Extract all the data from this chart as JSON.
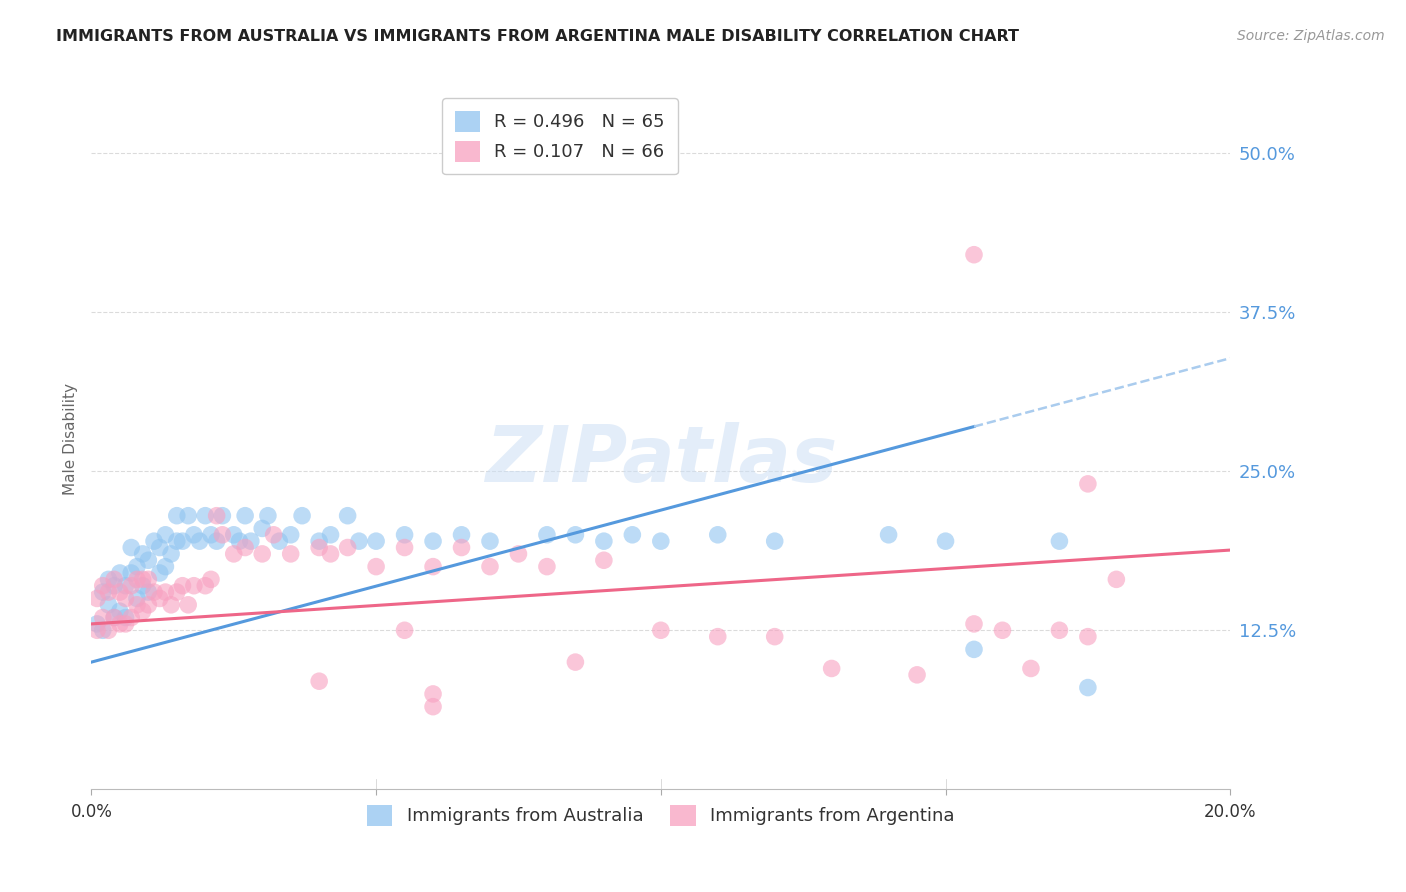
{
  "title": "IMMIGRANTS FROM AUSTRALIA VS IMMIGRANTS FROM ARGENTINA MALE DISABILITY CORRELATION CHART",
  "source": "Source: ZipAtlas.com",
  "ylabel": "Male Disability",
  "ytick_values": [
    0.125,
    0.25,
    0.375,
    0.5
  ],
  "xlim": [
    0.0,
    0.2
  ],
  "ylim": [
    0.0,
    0.55
  ],
  "watermark_text": "ZIPatlas",
  "australia_color": "#90c4f0",
  "argentina_color": "#f8a0c0",
  "australia_line_color": "#5599dd",
  "argentina_line_color": "#ee6688",
  "dashed_line_color": "#aaccee",
  "background_color": "#ffffff",
  "grid_color": "#d8d8d8",
  "title_color": "#222222",
  "tick_label_color": "#5599dd",
  "source_color": "#999999",
  "australia_label": "Immigrants from Australia",
  "argentina_label": "Immigrants from Argentina",
  "aus_R": "0.496",
  "aus_N": "65",
  "arg_R": "0.107",
  "arg_N": "66",
  "aus_x": [
    0.001,
    0.002,
    0.002,
    0.003,
    0.003,
    0.004,
    0.004,
    0.005,
    0.005,
    0.006,
    0.006,
    0.007,
    0.007,
    0.008,
    0.008,
    0.009,
    0.009,
    0.01,
    0.01,
    0.011,
    0.012,
    0.012,
    0.013,
    0.013,
    0.014,
    0.015,
    0.015,
    0.016,
    0.017,
    0.018,
    0.019,
    0.02,
    0.021,
    0.022,
    0.023,
    0.025,
    0.026,
    0.027,
    0.028,
    0.03,
    0.031,
    0.033,
    0.035,
    0.037,
    0.04,
    0.042,
    0.045,
    0.047,
    0.05,
    0.055,
    0.06,
    0.065,
    0.07,
    0.08,
    0.085,
    0.09,
    0.095,
    0.1,
    0.11,
    0.12,
    0.14,
    0.15,
    0.155,
    0.17,
    0.175
  ],
  "aus_y": [
    0.13,
    0.125,
    0.155,
    0.145,
    0.165,
    0.135,
    0.16,
    0.14,
    0.17,
    0.135,
    0.16,
    0.17,
    0.19,
    0.15,
    0.175,
    0.16,
    0.185,
    0.155,
    0.18,
    0.195,
    0.17,
    0.19,
    0.175,
    0.2,
    0.185,
    0.195,
    0.215,
    0.195,
    0.215,
    0.2,
    0.195,
    0.215,
    0.2,
    0.195,
    0.215,
    0.2,
    0.195,
    0.215,
    0.195,
    0.205,
    0.215,
    0.195,
    0.2,
    0.215,
    0.195,
    0.2,
    0.215,
    0.195,
    0.195,
    0.2,
    0.195,
    0.2,
    0.195,
    0.2,
    0.2,
    0.195,
    0.2,
    0.195,
    0.2,
    0.195,
    0.2,
    0.195,
    0.11,
    0.195,
    0.08
  ],
  "arg_x": [
    0.001,
    0.001,
    0.002,
    0.002,
    0.003,
    0.003,
    0.004,
    0.004,
    0.005,
    0.005,
    0.006,
    0.006,
    0.007,
    0.007,
    0.008,
    0.008,
    0.009,
    0.009,
    0.01,
    0.01,
    0.011,
    0.012,
    0.013,
    0.014,
    0.015,
    0.016,
    0.017,
    0.018,
    0.02,
    0.021,
    0.022,
    0.023,
    0.025,
    0.027,
    0.03,
    0.032,
    0.035,
    0.04,
    0.042,
    0.045,
    0.05,
    0.055,
    0.06,
    0.065,
    0.07,
    0.075,
    0.08,
    0.09,
    0.1,
    0.11,
    0.12,
    0.13,
    0.145,
    0.155,
    0.16,
    0.165,
    0.17,
    0.175,
    0.18,
    0.04,
    0.055,
    0.06,
    0.06,
    0.085,
    0.155,
    0.175
  ],
  "arg_y": [
    0.125,
    0.15,
    0.135,
    0.16,
    0.125,
    0.155,
    0.135,
    0.165,
    0.13,
    0.155,
    0.13,
    0.15,
    0.135,
    0.16,
    0.145,
    0.165,
    0.14,
    0.165,
    0.145,
    0.165,
    0.155,
    0.15,
    0.155,
    0.145,
    0.155,
    0.16,
    0.145,
    0.16,
    0.16,
    0.165,
    0.215,
    0.2,
    0.185,
    0.19,
    0.185,
    0.2,
    0.185,
    0.19,
    0.185,
    0.19,
    0.175,
    0.19,
    0.175,
    0.19,
    0.175,
    0.185,
    0.175,
    0.18,
    0.125,
    0.12,
    0.12,
    0.095,
    0.09,
    0.13,
    0.125,
    0.095,
    0.125,
    0.12,
    0.165,
    0.085,
    0.125,
    0.075,
    0.065,
    0.1,
    0.42,
    0.24
  ]
}
